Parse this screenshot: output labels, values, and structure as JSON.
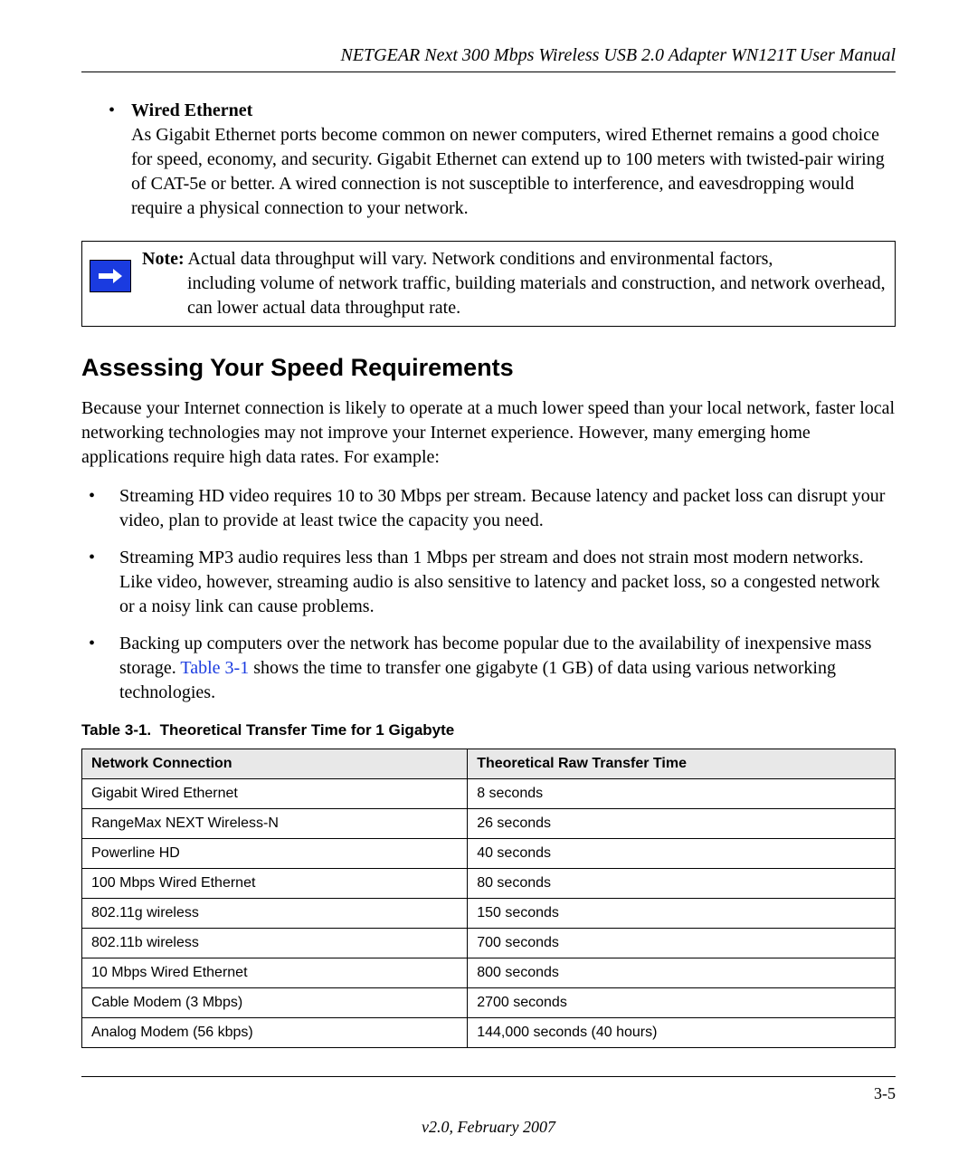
{
  "header": {
    "title": "NETGEAR Next 300 Mbps Wireless USB 2.0 Adapter WN121T User Manual"
  },
  "wired": {
    "heading": "Wired Ethernet",
    "body": "As Gigabit Ethernet ports become common on newer computers, wired Ethernet remains a good choice for speed, economy, and security. Gigabit Ethernet can extend up to 100 meters with twisted-pair wiring of CAT-5e or better. A wired connection is not susceptible to interference, and eavesdropping would require a physical connection to your network."
  },
  "note": {
    "label": "Note:",
    "line1": " Actual data throughput will vary. Network conditions and environmental factors,",
    "line2": "including volume of network traffic, building materials and construction, and network overhead, can lower actual data throughput rate."
  },
  "section": {
    "heading": "Assessing Your Speed Requirements",
    "intro": "Because your Internet connection is likely to operate at a much lower speed than your local network, faster local networking technologies may not improve your Internet experience. However, many emerging home applications require high data rates. For example:"
  },
  "bullets": [
    "Streaming HD video requires 10 to 30 Mbps per stream. Because latency and packet loss can disrupt your video, plan to provide at least twice the capacity you need.",
    "Streaming MP3 audio requires less than 1 Mbps per stream and does not strain most modern networks. Like video, however, streaming audio is also sensitive to latency and packet loss, so a congested network or a noisy link can cause problems."
  ],
  "bullet3": {
    "pre": "Backing up computers over the network has become popular due to the availability of inexpensive mass storage. ",
    "ref": "Table 3-1",
    "post": " shows the time to transfer one gigabyte (1 GB) of data using various networking technologies."
  },
  "table": {
    "caption": "Table 3-1.  Theoretical Transfer Time for 1 Gigabyte",
    "columns": [
      "Network Connection",
      "Theoretical Raw Transfer Time"
    ],
    "rows": [
      [
        "Gigabit Wired Ethernet",
        "8 seconds"
      ],
      [
        "RangeMax NEXT Wireless-N",
        "26 seconds"
      ],
      [
        "Powerline HD",
        "40 seconds"
      ],
      [
        "100 Mbps Wired Ethernet",
        "80 seconds"
      ],
      [
        "802.11g wireless",
        "150 seconds"
      ],
      [
        "802.11b wireless",
        "700 seconds"
      ],
      [
        "10 Mbps Wired Ethernet",
        "800 seconds"
      ],
      [
        "Cable Modem (3 Mbps)",
        "2700 seconds"
      ],
      [
        "Analog Modem (56 kbps)",
        "144,000 seconds (40 hours)"
      ]
    ]
  },
  "footer": {
    "page": "3-5",
    "version": "v2.0, February 2007"
  },
  "colors": {
    "link": "#1a3be0",
    "note_icon_bg": "#1a3be0",
    "table_header_bg": "#e8e8e8"
  }
}
